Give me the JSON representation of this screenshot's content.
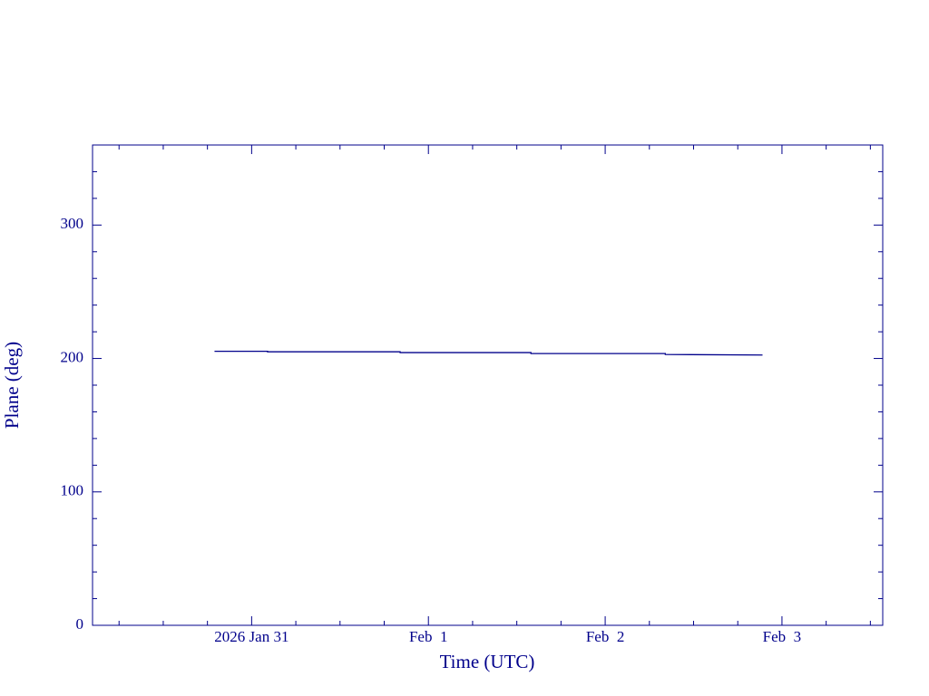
{
  "chart_data": {
    "type": "line",
    "xlabel": "Time (UTC)",
    "ylabel": "Plane (deg)",
    "x": [
      30.79,
      31.09,
      31.09,
      31.84,
      31.84,
      32.58,
      32.58,
      33.34,
      33.34,
      33.89
    ],
    "series": [
      {
        "color": "#00008b",
        "values": [
          205.4,
          205.4,
          205.0,
          205.0,
          204.4,
          204.4,
          203.7,
          203.7,
          203.0,
          202.6
        ]
      }
    ],
    "xlim": [
      30.1,
      34.57
    ],
    "ylim": [
      0,
      360
    ],
    "xticks": [
      {
        "value": 31,
        "label": "2026 Jan 31"
      },
      {
        "value": 32,
        "label": "Feb  1"
      },
      {
        "value": 33,
        "label": "Feb  2"
      },
      {
        "value": 34,
        "label": "Feb  3"
      }
    ],
    "yticks": [
      0,
      100,
      200,
      300
    ],
    "xticks_minor": [
      30.25,
      30.5,
      30.75,
      31.25,
      31.5,
      31.75,
      32.25,
      32.5,
      32.75,
      33.25,
      33.5,
      33.75,
      34.25,
      34.5
    ],
    "yticks_minor": [
      20,
      40,
      60,
      80,
      120,
      140,
      160,
      180,
      220,
      240,
      260,
      280,
      320,
      340,
      360
    ]
  }
}
